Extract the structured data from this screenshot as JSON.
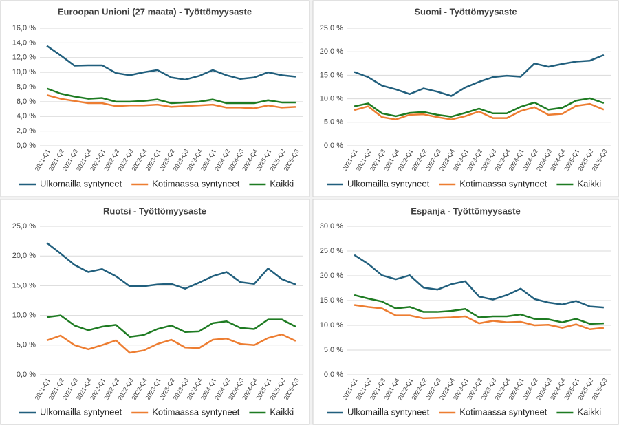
{
  "chart_data": [
    {
      "type": "line",
      "title": "Euroopan Unioni (27 maata) - Työttömyysaste",
      "categories": [
        "2021-Q1",
        "2021-Q2",
        "2021-Q3",
        "2021-Q4",
        "2022-Q1",
        "2022-Q2",
        "2022-Q3",
        "2022-Q4",
        "2023-Q1",
        "2023-Q2",
        "2023-Q3",
        "2023-Q4",
        "2024-Q1",
        "2024-Q2",
        "2024-Q3",
        "2024-Q4",
        "2025-Q1",
        "2025-Q2",
        "2025-Q3"
      ],
      "series": [
        {
          "name": "Ulkomailla syntyneet",
          "color": "#215f7d",
          "values": [
            13.6,
            12.3,
            10.9,
            10.95,
            10.95,
            9.9,
            9.6,
            10.0,
            10.3,
            9.3,
            9.0,
            9.5,
            10.3,
            9.6,
            9.1,
            9.3,
            10.0,
            9.6,
            9.4
          ]
        },
        {
          "name": "Kotimaassa syntyneet",
          "color": "#ed7d31",
          "values": [
            6.9,
            6.4,
            6.1,
            5.8,
            5.8,
            5.4,
            5.5,
            5.5,
            5.6,
            5.3,
            5.4,
            5.5,
            5.6,
            5.2,
            5.2,
            5.1,
            5.5,
            5.2,
            5.3
          ]
        },
        {
          "name": "Kaikki",
          "color": "#1e7b22",
          "values": [
            7.8,
            7.1,
            6.7,
            6.4,
            6.5,
            6.0,
            6.0,
            6.1,
            6.3,
            5.8,
            5.9,
            6.0,
            6.3,
            5.8,
            5.8,
            5.8,
            6.2,
            5.9,
            5.9
          ]
        }
      ],
      "ylim": [
        0,
        16
      ],
      "yticks": [
        {
          "value": 0,
          "label": "0,0 %"
        },
        {
          "value": 2,
          "label": "2,0 %"
        },
        {
          "value": 4,
          "label": "4,0 %"
        },
        {
          "value": 6,
          "label": "6,0 %"
        },
        {
          "value": 8,
          "label": "8,0 %"
        },
        {
          "value": 10,
          "label": "10,0 %"
        },
        {
          "value": 12,
          "label": "12,0 %"
        },
        {
          "value": 14,
          "label": "14,0 %"
        },
        {
          "value": 16,
          "label": "16,0 %"
        }
      ],
      "grid": true
    },
    {
      "type": "line",
      "title": "Suomi - Työttömyysaste",
      "categories": [
        "2021-Q1",
        "2021-Q2",
        "2021-Q3",
        "2021-Q4",
        "2022-Q1",
        "2022-Q2",
        "2022-Q3",
        "2022-Q4",
        "2023-Q1",
        "2023-Q2",
        "2023-Q3",
        "2023-Q4",
        "2024-Q1",
        "2024-Q2",
        "2024-Q3",
        "2024-Q4",
        "2025-Q1",
        "2025-Q2",
        "2025-Q3"
      ],
      "series": [
        {
          "name": "Ulkomailla syntyneet",
          "color": "#215f7d",
          "values": [
            15.7,
            14.6,
            12.8,
            12.0,
            11.0,
            12.2,
            11.5,
            10.6,
            12.4,
            13.6,
            14.6,
            14.9,
            14.7,
            17.5,
            16.8,
            17.4,
            17.9,
            18.1,
            19.3
          ]
        },
        {
          "name": "Kotimaassa syntyneet",
          "color": "#ed7d31",
          "values": [
            7.6,
            8.4,
            6.1,
            5.6,
            6.6,
            6.7,
            6.1,
            5.6,
            6.3,
            7.3,
            5.9,
            5.9,
            7.4,
            8.2,
            6.6,
            6.8,
            8.5,
            8.9,
            7.7
          ]
        },
        {
          "name": "Kaikki",
          "color": "#1e7b22",
          "values": [
            8.4,
            9.0,
            6.9,
            6.3,
            7.0,
            7.2,
            6.6,
            6.2,
            7.0,
            7.9,
            6.9,
            6.9,
            8.3,
            9.2,
            7.7,
            8.1,
            9.6,
            10.1,
            9.1
          ]
        }
      ],
      "ylim": [
        0,
        25
      ],
      "yticks": [
        {
          "value": 0,
          "label": "0,0 %"
        },
        {
          "value": 5,
          "label": "5,0 %"
        },
        {
          "value": 10,
          "label": "10,0 %"
        },
        {
          "value": 15,
          "label": "15,0 %"
        },
        {
          "value": 20,
          "label": "20,0 %"
        },
        {
          "value": 25,
          "label": "25,0 %"
        }
      ],
      "grid": true
    },
    {
      "type": "line",
      "title": "Ruotsi - Työttömyysaste",
      "categories": [
        "2021-Q1",
        "2021-Q2",
        "2021-Q3",
        "2021-Q4",
        "2022-Q1",
        "2022-Q2",
        "2022-Q3",
        "2022-Q4",
        "2023-Q1",
        "2023-Q2",
        "2023-Q3",
        "2023-Q4",
        "2024-Q1",
        "2024-Q2",
        "2024-Q3",
        "2024-Q4",
        "2025-Q1",
        "2025-Q2",
        "2025-Q3"
      ],
      "series": [
        {
          "name": "Ulkomailla syntyneet",
          "color": "#215f7d",
          "values": [
            22.2,
            20.4,
            18.5,
            17.3,
            17.8,
            16.6,
            14.9,
            14.9,
            15.2,
            15.3,
            14.5,
            15.5,
            16.6,
            17.3,
            15.6,
            15.3,
            17.9,
            16.1,
            15.2
          ]
        },
        {
          "name": "Kotimaassa syntyneet",
          "color": "#ed7d31",
          "values": [
            5.8,
            6.6,
            5.0,
            4.3,
            5.0,
            5.8,
            3.7,
            4.1,
            5.2,
            5.9,
            4.6,
            4.5,
            5.9,
            6.1,
            5.2,
            5.0,
            6.2,
            6.8,
            5.7
          ]
        },
        {
          "name": "Kaikki",
          "color": "#1e7b22",
          "values": [
            9.7,
            10.0,
            8.3,
            7.5,
            8.1,
            8.4,
            6.4,
            6.7,
            7.7,
            8.3,
            7.2,
            7.3,
            8.7,
            9.0,
            7.9,
            7.7,
            9.3,
            9.3,
            8.1
          ]
        }
      ],
      "ylim": [
        0,
        25
      ],
      "yticks": [
        {
          "value": 0,
          "label": "0,0 %"
        },
        {
          "value": 5,
          "label": "5,0 %"
        },
        {
          "value": 10,
          "label": "10,0 %"
        },
        {
          "value": 15,
          "label": "15,0 %"
        },
        {
          "value": 20,
          "label": "20,0 %"
        },
        {
          "value": 25,
          "label": "25,0 %"
        }
      ],
      "grid": true
    },
    {
      "type": "line",
      "title": "Espanja - Työttömyysaste",
      "categories": [
        "2021-Q1",
        "2021-Q2",
        "2021-Q3",
        "2021-Q4",
        "2022-Q1",
        "2022-Q2",
        "2022-Q3",
        "2022-Q4",
        "2023-Q1",
        "2023-Q2",
        "2023-Q3",
        "2023-Q4",
        "2024-Q1",
        "2024-Q2",
        "2024-Q3",
        "2024-Q4",
        "2025-Q1",
        "2025-Q2",
        "2025-Q3"
      ],
      "series": [
        {
          "name": "Ulkomailla syntyneet",
          "color": "#215f7d",
          "values": [
            24.2,
            22.4,
            20.1,
            19.3,
            20.1,
            17.6,
            17.2,
            18.3,
            18.9,
            15.8,
            15.2,
            16.1,
            17.4,
            15.3,
            14.6,
            14.2,
            14.9,
            13.8,
            13.6
          ]
        },
        {
          "name": "Kotimaassa syntyneet",
          "color": "#ed7d31",
          "values": [
            14.1,
            13.7,
            13.4,
            12.0,
            12.0,
            11.4,
            11.5,
            11.6,
            11.8,
            10.4,
            10.9,
            10.6,
            10.7,
            10.0,
            10.1,
            9.5,
            10.2,
            9.2,
            9.5
          ]
        },
        {
          "name": "Kaikki",
          "color": "#1e7b22",
          "values": [
            16.1,
            15.4,
            14.8,
            13.4,
            13.7,
            12.7,
            12.7,
            12.9,
            13.3,
            11.6,
            11.8,
            11.8,
            12.2,
            11.3,
            11.2,
            10.6,
            11.3,
            10.3,
            10.4
          ]
        }
      ],
      "ylim": [
        0,
        30
      ],
      "yticks": [
        {
          "value": 0,
          "label": "0,0 %"
        },
        {
          "value": 5,
          "label": "5,0 %"
        },
        {
          "value": 10,
          "label": "10,0 %"
        },
        {
          "value": 15,
          "label": "15,0 %"
        },
        {
          "value": 20,
          "label": "20,0 %"
        },
        {
          "value": 25,
          "label": "25,0 %"
        },
        {
          "value": 30,
          "label": "30,0 %"
        }
      ],
      "grid": true
    }
  ]
}
